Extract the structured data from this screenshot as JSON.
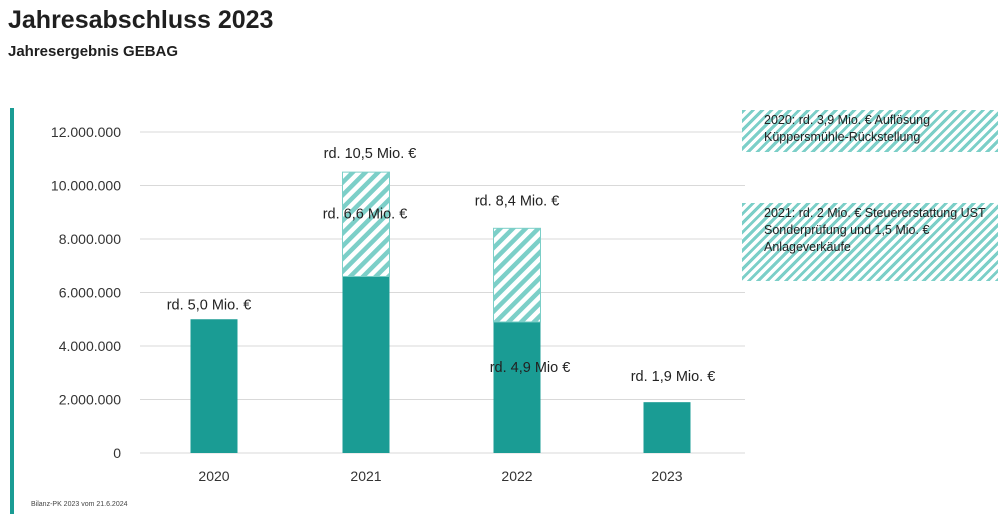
{
  "header": {
    "title": "Jahresabschluss 2023",
    "subtitle": "Jahresergebnis GEBAG"
  },
  "footer": {
    "text": "Bilanz-PK 2023 vom 21.6.2024"
  },
  "legend": [
    {
      "text": "2020: rd. 3,9 Mio. € Auflösung Küppersmühle-Rückstellung"
    },
    {
      "text": "2021: rd. 2 Mio. € Steuererstattung UST Sonderprüfung und 1,5 Mio. € Anlageverkäufe"
    }
  ],
  "colors": {
    "solid": "#1a9c94",
    "hatch": "#7ccfc8",
    "grid": "#d9d9d9",
    "accent": "#1a9c94"
  },
  "chart_data": {
    "type": "bar",
    "stacked": true,
    "categories": [
      "2020",
      "2021",
      "2022",
      "2023"
    ],
    "series": [
      {
        "values": [
          5000000,
          6600000,
          4900000,
          1900000
        ]
      },
      {
        "values": [
          0,
          3900000,
          3500000,
          0
        ]
      }
    ],
    "ylim": [
      0,
      12000000
    ],
    "yticks": [
      0,
      2000000,
      4000000,
      6000000,
      8000000,
      10000000,
      12000000
    ],
    "ytick_labels": [
      "0",
      "2.000.000",
      "4.000.000",
      "6.000.000",
      "8.000.000",
      "10.000.000",
      "12.000.000"
    ],
    "grid": true,
    "data_labels": [
      {
        "category": "2020",
        "y": 5000000,
        "text": "rd. 5,0 Mio. €"
      },
      {
        "category": "2021",
        "y": 10500000,
        "text": "rd. 10,5 Mio. €"
      },
      {
        "category": "2021",
        "y": 6600000,
        "text": "rd. 6,6 Mio. €"
      },
      {
        "category": "2022",
        "y": 8400000,
        "text": "rd. 8,4 Mio. €"
      },
      {
        "category": "2022",
        "y": 4900000,
        "text": "rd. 4,9 Mio €"
      },
      {
        "category": "2023",
        "y": 1900000,
        "text": "rd.  1,9 Mio. €"
      }
    ]
  }
}
